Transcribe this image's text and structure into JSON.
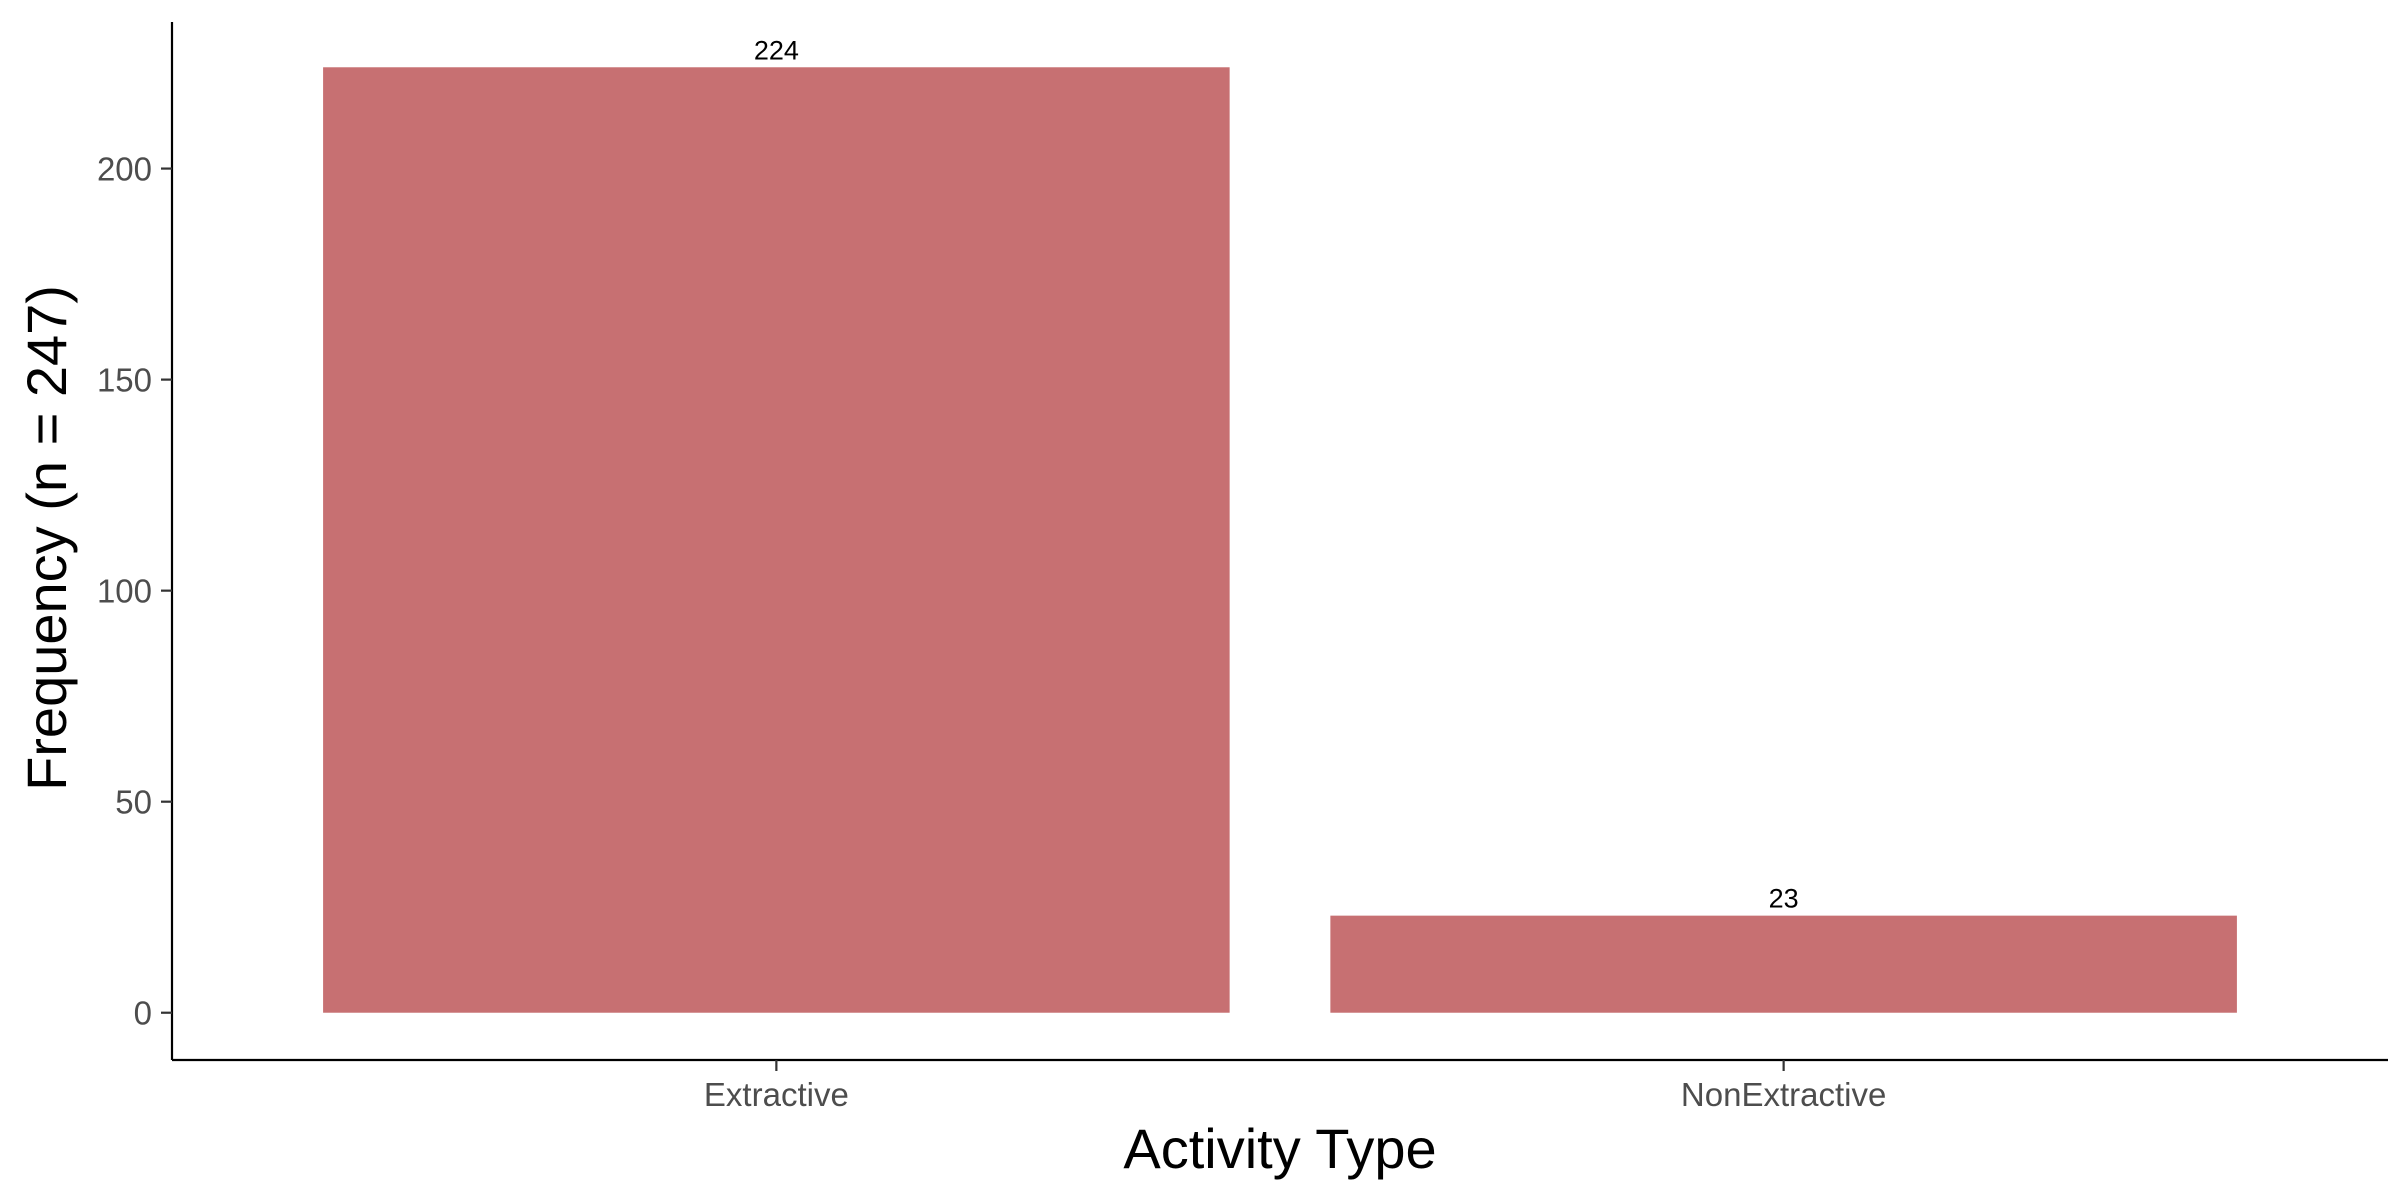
{
  "chart_data": {
    "type": "bar",
    "categories": [
      "Extractive",
      "NonExtractive"
    ],
    "values": [
      224,
      23
    ],
    "data_labels": [
      "224",
      "23"
    ],
    "title": "",
    "xlabel": "Activity Type",
    "ylabel": "Frequency (n = 247)",
    "yticks": [
      0,
      50,
      100,
      150,
      200
    ],
    "ytick_labels": [
      "0",
      "50",
      "100",
      "150",
      "200"
    ],
    "ylim": [
      -11.2,
      235.2
    ],
    "grid": false,
    "legend": "none",
    "bar_color": "#c77072"
  }
}
